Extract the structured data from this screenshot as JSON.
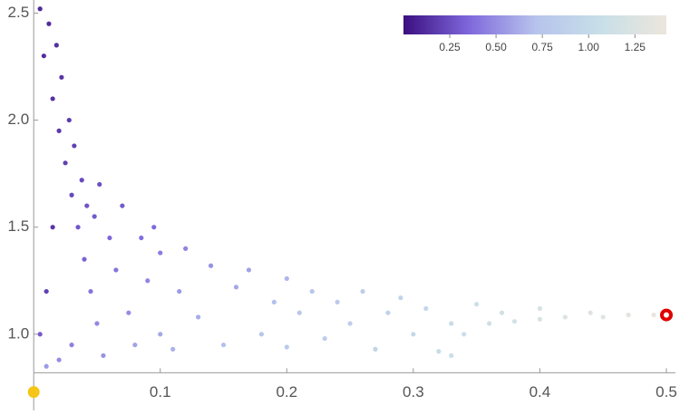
{
  "chart_data": {
    "type": "scatter",
    "xlim": [
      -0.003,
      0.5036
    ],
    "ylim": [
      0.72,
      2.54
    ],
    "axis_origin": [
      0,
      0.82
    ],
    "xticks": [
      0.1,
      0.2,
      0.3,
      0.4,
      0.5
    ],
    "yticks": [
      {
        "value": 1,
        "label": "1.0"
      },
      1.5,
      {
        "value": 2,
        "label": "2.0"
      },
      2.5
    ],
    "colormap": [
      "#3b0f80",
      "#7f68dc",
      "#b6c3ec",
      "#c8dfe8",
      "#ece6dc"
    ],
    "colorbar": {
      "clim": [
        0,
        1.42
      ],
      "ticks": [
        0.25,
        {
          "value": 0.5,
          "label": "0.50"
        },
        {
          "value": 0.75,
          "label": "0.75"
        },
        {
          "value": 1,
          "label": "1.00"
        },
        {
          "value": 1.25,
          "label": "1.25"
        }
      ],
      "position": "top-right"
    },
    "series": [
      {
        "x": [
          0.005,
          0.008,
          0.012,
          0.015,
          0.018,
          0.02,
          0.022,
          0.025,
          0.028,
          0.03,
          0.032,
          0.035,
          0.038,
          0.04,
          0.042,
          0.045,
          0.048,
          0.05,
          0.052,
          0.055,
          0.06,
          0.065,
          0.07,
          0.075,
          0.08,
          0.085,
          0.09,
          0.095,
          0.1,
          0.1,
          0.11,
          0.115,
          0.12,
          0.13,
          0.14,
          0.15,
          0.16,
          0.17,
          0.18,
          0.19,
          0.2,
          0.2,
          0.21,
          0.22,
          0.23,
          0.24,
          0.25,
          0.26,
          0.27,
          0.28,
          0.29,
          0.3,
          0.31,
          0.32,
          0.33,
          0.33,
          0.34,
          0.35,
          0.36,
          0.37,
          0.38,
          0.4,
          0.4,
          0.42,
          0.44,
          0.45,
          0.47,
          0.49,
          0.01,
          0.02,
          0.005,
          0.03,
          0.01,
          0.015
        ],
        "y": [
          2.52,
          2.3,
          2.45,
          2.1,
          2.35,
          1.95,
          2.2,
          1.8,
          2.0,
          1.65,
          1.88,
          1.5,
          1.72,
          1.35,
          1.6,
          1.2,
          1.55,
          1.05,
          1.7,
          0.9,
          1.45,
          1.3,
          1.6,
          1.1,
          0.95,
          1.45,
          1.25,
          1.5,
          1.0,
          1.38,
          0.93,
          1.2,
          1.4,
          1.08,
          1.32,
          0.95,
          1.22,
          1.3,
          1.0,
          1.15,
          1.26,
          0.94,
          1.1,
          1.2,
          0.98,
          1.15,
          1.05,
          1.2,
          0.93,
          1.1,
          1.17,
          1.0,
          1.12,
          0.92,
          1.05,
          0.9,
          1.0,
          1.14,
          1.05,
          1.1,
          1.06,
          1.12,
          1.07,
          1.08,
          1.1,
          1.08,
          1.09,
          1.09,
          0.85,
          0.88,
          1.0,
          0.95,
          1.2,
          1.5
        ],
        "c": [
          0.1,
          0.12,
          0.12,
          0.14,
          0.13,
          0.17,
          0.15,
          0.2,
          0.18,
          0.23,
          0.2,
          0.28,
          0.24,
          0.33,
          0.27,
          0.4,
          0.3,
          0.48,
          0.26,
          0.52,
          0.35,
          0.4,
          0.3,
          0.5,
          0.58,
          0.38,
          0.47,
          0.36,
          0.6,
          0.43,
          0.64,
          0.55,
          0.46,
          0.62,
          0.52,
          0.7,
          0.6,
          0.58,
          0.74,
          0.7,
          0.66,
          0.8,
          0.76,
          0.74,
          0.84,
          0.8,
          0.86,
          0.82,
          0.92,
          0.9,
          0.9,
          0.98,
          0.98,
          1.04,
          1.04,
          1.06,
          1.08,
          1.1,
          1.12,
          1.14,
          1.16,
          1.2,
          1.2,
          1.24,
          1.28,
          1.3,
          1.34,
          1.38,
          0.55,
          0.5,
          0.3,
          0.45,
          0.2,
          0.15
        ]
      }
    ],
    "markers": [
      {
        "x": 0,
        "y": 0.73,
        "color": "#f5c518",
        "style": "filled"
      },
      {
        "x": 0.5,
        "y": 1.09,
        "color": "#e00000",
        "style": "ring"
      }
    ]
  }
}
